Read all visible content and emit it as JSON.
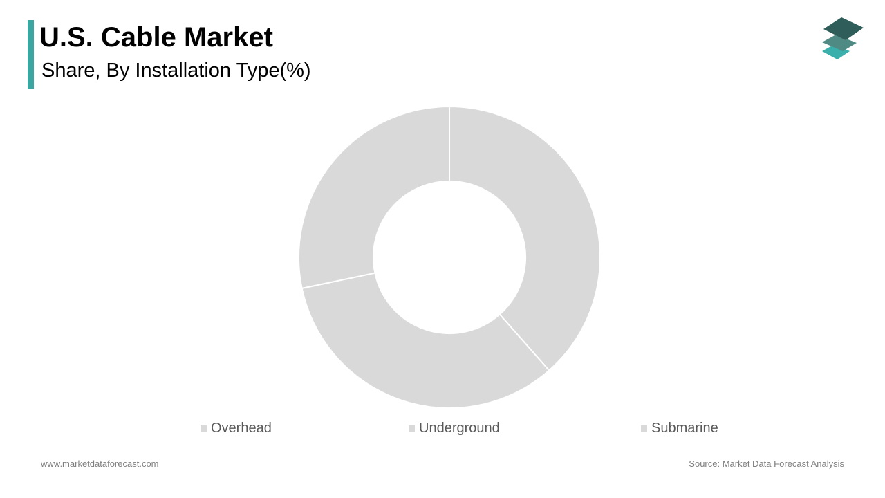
{
  "header": {
    "title": "U.S. Cable Market",
    "subtitle": "Share, By Installation Type(%)"
  },
  "footer": {
    "website": "www.marketdataforecast.com",
    "source": "Source: Market Data Forecast Analysis"
  },
  "logo": {
    "icon": "stacked-layers-logo",
    "colors": [
      "#2f5e5a",
      "#4f8a85",
      "#3aafab"
    ]
  },
  "chart_data": {
    "type": "donut",
    "title": "U.S. Cable Market",
    "subtitle": "Share, By Installation Type(%)",
    "categories": [
      "Overhead",
      "Underground",
      "Submarine"
    ],
    "values": [
      38.5,
      33.2,
      28.3
    ],
    "colors": [
      "#d9d9d9",
      "#d9d9d9",
      "#d9d9d9"
    ],
    "start_angle": "12 o'clock, clockwise",
    "legend": "bottom",
    "data_labels": false
  }
}
